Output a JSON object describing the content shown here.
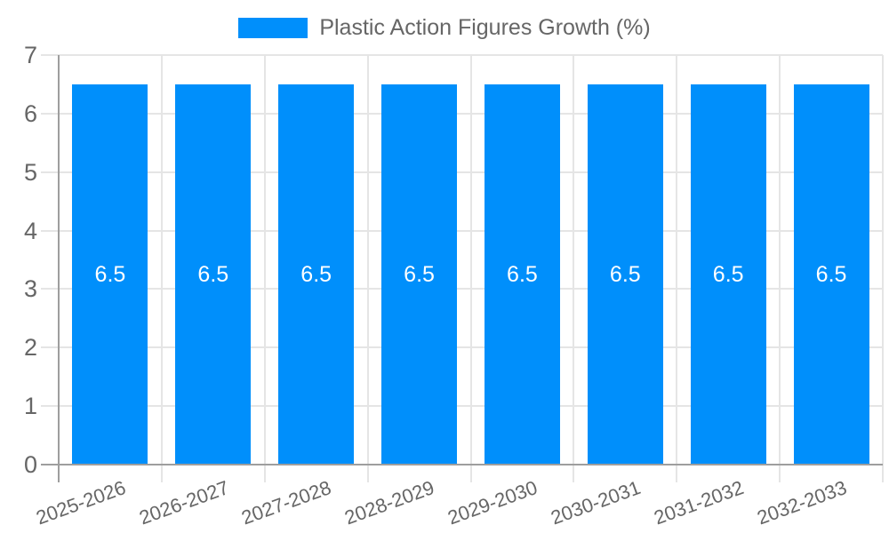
{
  "chart_data": {
    "type": "bar",
    "title": "",
    "legend_label": "Plastic Action Figures Growth (%)",
    "categories": [
      "2025-2026",
      "2026-2027",
      "2027-2028",
      "2028-2029",
      "2029-2030",
      "2030-2031",
      "2031-2032",
      "2032-2033"
    ],
    "series": [
      {
        "name": "Plastic Action Figures Growth (%)",
        "values": [
          6.5,
          6.5,
          6.5,
          6.5,
          6.5,
          6.5,
          6.5,
          6.5
        ]
      }
    ],
    "value_labels": [
      "6.5",
      "6.5",
      "6.5",
      "6.5",
      "6.5",
      "6.5",
      "6.5",
      "6.5"
    ],
    "xlabel": "",
    "ylabel": "",
    "ylim": [
      0,
      7
    ],
    "y_ticks": [
      "7",
      "6",
      "5",
      "4",
      "3",
      "2",
      "1",
      "0"
    ],
    "grid": true,
    "legend_position": "top",
    "x_label_rotation_deg": -20,
    "colors": {
      "bar": "#008FFB",
      "text": "#666666",
      "grid": "#e5e5e5",
      "axis": "#9e9e9e",
      "value_label": "#ffffff",
      "background": "#ffffff"
    }
  }
}
